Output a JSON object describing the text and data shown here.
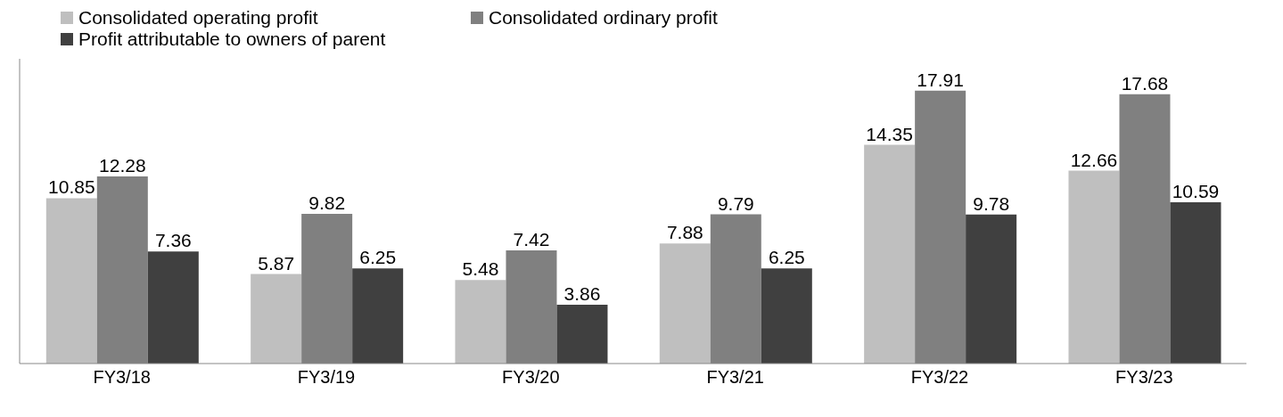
{
  "chart_data": {
    "type": "bar",
    "categories": [
      "FY3/18",
      "FY3/19",
      "FY3/20",
      "FY3/21",
      "FY3/22",
      "FY3/23"
    ],
    "series": [
      {
        "name": "Consolidated operating profit",
        "color": "#bfbfbf",
        "values": [
          10.85,
          5.87,
          5.48,
          7.88,
          14.35,
          12.66
        ]
      },
      {
        "name": "Consolidated ordinary profit",
        "color": "#808080",
        "values": [
          12.28,
          9.82,
          7.42,
          9.79,
          17.91,
          17.68
        ]
      },
      {
        "name": "Profit attributable to owners of parent",
        "color": "#404040",
        "values": [
          7.36,
          6.25,
          3.86,
          6.25,
          9.78,
          10.59
        ]
      }
    ],
    "tick_labels": "x",
    "grid": false,
    "legend": "top left",
    "data_labels": true
  }
}
